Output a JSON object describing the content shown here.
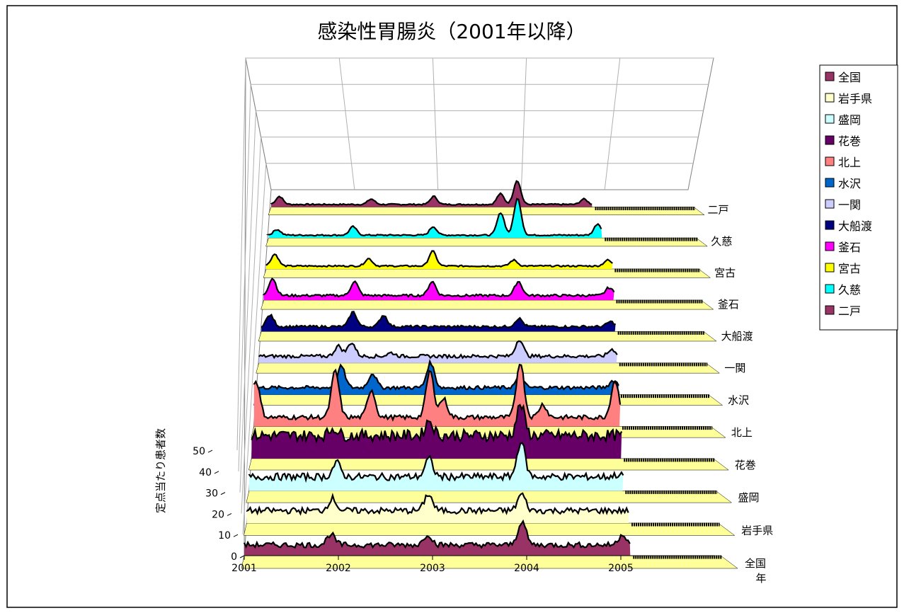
{
  "chart_data": {
    "type": "area",
    "title": "感染性胃腸炎（2001年以降）",
    "xlabel": "年",
    "ylabel": "定点当たり患者数",
    "ylim": [
      0,
      50
    ],
    "y_ticks": [
      "0",
      "10",
      "20",
      "30",
      "40",
      "50"
    ],
    "x_ticks": [
      "2001",
      "2002",
      "2003",
      "2004",
      "2005"
    ],
    "x_range": [
      2001,
      2006
    ],
    "wall_color": "#ffffff",
    "floor_color": "#ffff99",
    "grid": true,
    "legend_position": "right",
    "series": [
      {
        "name": "全国",
        "color": "#993366",
        "base": 5,
        "peak": 12,
        "start": 2001.0,
        "end": 2005.1,
        "peaks": [
          [
            2001.92,
            10
          ],
          [
            2002.95,
            10
          ],
          [
            2003.95,
            16
          ],
          [
            2005.02,
            10
          ]
        ]
      },
      {
        "name": "岩手県",
        "color": "#ffffcc",
        "base": 6,
        "peak": 14,
        "start": 2001.0,
        "end": 2005.1,
        "peaks": [
          [
            2001.92,
            12
          ],
          [
            2002.95,
            14
          ],
          [
            2003.95,
            14
          ],
          [
            2005.0,
            6
          ]
        ]
      },
      {
        "name": "盛岡",
        "color": "#ccffff",
        "base": 7,
        "peak": 20,
        "start": 2001.0,
        "end": 2005.05,
        "peaks": [
          [
            2001.95,
            14
          ],
          [
            2002.95,
            16
          ],
          [
            2003.95,
            25
          ],
          [
            2005.0,
            8
          ]
        ]
      },
      {
        "name": "花巻",
        "color": "#660066",
        "base": 12,
        "peak": 22,
        "start": 2001.0,
        "end": 2005.05,
        "peaks": [
          [
            2001.9,
            16
          ],
          [
            2002.95,
            20
          ],
          [
            2003.95,
            28
          ],
          [
            2005.0,
            12
          ]
        ]
      },
      {
        "name": "北上",
        "color": "#ff8080",
        "base": 5,
        "peak": 30,
        "start": 2001.0,
        "end": 2005.05,
        "peaks": [
          [
            2001.02,
            25
          ],
          [
            2001.9,
            30
          ],
          [
            2002.3,
            20
          ],
          [
            2002.95,
            30
          ],
          [
            2003.1,
            15
          ],
          [
            2003.95,
            35
          ],
          [
            2004.2,
            12
          ],
          [
            2005.0,
            25
          ]
        ]
      },
      {
        "name": "水沢",
        "color": "#0066cc",
        "base": 4,
        "peak": 18,
        "start": 2001.0,
        "end": 2005.05,
        "peaks": [
          [
            2001.95,
            16
          ],
          [
            2002.3,
            12
          ],
          [
            2002.95,
            18
          ],
          [
            2003.95,
            10
          ],
          [
            2005.0,
            8
          ]
        ]
      },
      {
        "name": "一関",
        "color": "#ccccff",
        "base": 4,
        "peak": 14,
        "start": 2001.0,
        "end": 2005.05,
        "peaks": [
          [
            2001.9,
            10
          ],
          [
            2002.05,
            12
          ],
          [
            2002.5,
            6
          ],
          [
            2003.95,
            14
          ],
          [
            2005.0,
            8
          ]
        ]
      },
      {
        "name": "大船渡",
        "color": "#000080",
        "base": 3,
        "peak": 12,
        "start": 2001.0,
        "end": 2005.05,
        "peaks": [
          [
            2001.1,
            10
          ],
          [
            2002.05,
            12
          ],
          [
            2002.4,
            10
          ],
          [
            2003.95,
            8
          ],
          [
            2005.0,
            6
          ]
        ]
      },
      {
        "name": "釜石",
        "color": "#ff00ff",
        "base": 3,
        "peak": 14,
        "start": 2001.0,
        "end": 2005.05,
        "peaks": [
          [
            2001.1,
            14
          ],
          [
            2002.05,
            12
          ],
          [
            2002.95,
            12
          ],
          [
            2003.95,
            12
          ],
          [
            2005.0,
            8
          ]
        ]
      },
      {
        "name": "宮古",
        "color": "#ffff00",
        "base": 2,
        "peak": 10,
        "start": 2001.0,
        "end": 2005.05,
        "peaks": [
          [
            2001.1,
            10
          ],
          [
            2002.2,
            7
          ],
          [
            2002.95,
            12
          ],
          [
            2003.9,
            6
          ],
          [
            2005.0,
            6
          ]
        ]
      },
      {
        "name": "久慈",
        "color": "#00ffff",
        "base": 2,
        "peak": 28,
        "start": 2001.0,
        "end": 2004.95,
        "peaks": [
          [
            2001.1,
            6
          ],
          [
            2002.0,
            8
          ],
          [
            2002.95,
            8
          ],
          [
            2003.75,
            18
          ],
          [
            2003.95,
            28
          ],
          [
            2004.9,
            10
          ]
        ]
      },
      {
        "name": "二戸",
        "color": "#993366",
        "base": 2,
        "peak": 20,
        "start": 2001.0,
        "end": 2004.85,
        "peaks": [
          [
            2001.1,
            8
          ],
          [
            2002.2,
            6
          ],
          [
            2002.95,
            8
          ],
          [
            2003.75,
            10
          ],
          [
            2003.95,
            20
          ],
          [
            2004.75,
            6
          ]
        ]
      }
    ],
    "legend_entries": [
      "全国",
      "岩手県",
      "盛岡",
      "花巻",
      "北上",
      "水沢",
      "一関",
      "大船渡",
      "釜石",
      "宮古",
      "久慈",
      "二戸"
    ],
    "legend_colors": [
      "#993366",
      "#ffffcc",
      "#ccffff",
      "#660066",
      "#ff8080",
      "#0066cc",
      "#ccccff",
      "#000080",
      "#ff00ff",
      "#ffff00",
      "#00ffff",
      "#993366"
    ]
  }
}
